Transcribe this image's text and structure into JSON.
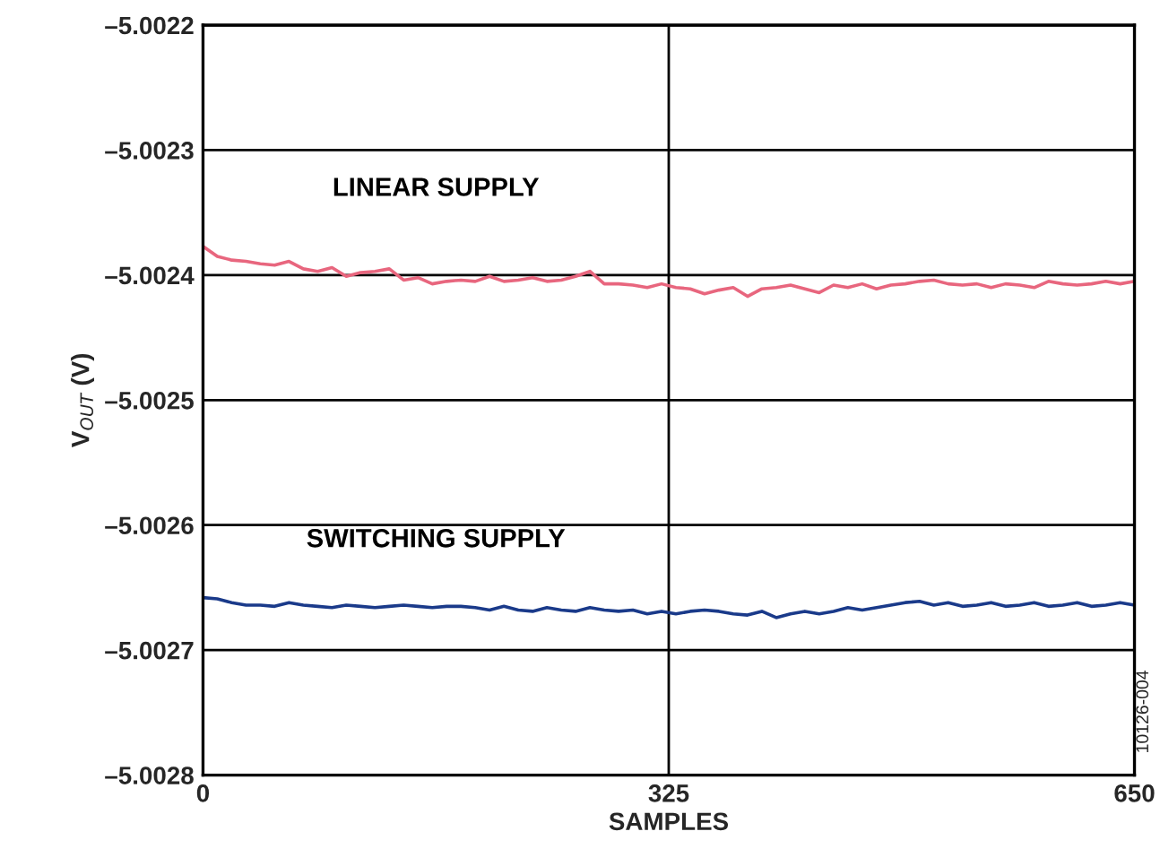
{
  "chart_data": {
    "type": "line",
    "xlabel": "SAMPLES",
    "ylabel": "V$_{OUT}$ (V)",
    "xlim": [
      0,
      650
    ],
    "xticks": [
      0,
      325,
      650
    ],
    "ylim": [
      -5.0028,
      -5.0022
    ],
    "yticks": [
      {
        "value": -5.0028,
        "label": "–5.0028"
      },
      {
        "value": -5.0027,
        "label": "–5.0027"
      },
      {
        "value": -5.0026,
        "label": "–5.0026"
      },
      {
        "value": -5.0025,
        "label": "–5.0025"
      },
      {
        "value": -5.0024,
        "label": "–5.0024"
      },
      {
        "value": -5.0023,
        "label": "–5.0023"
      },
      {
        "value": -5.0022,
        "label": "–5.0022"
      }
    ],
    "grid": true,
    "legend": false,
    "marker": "none",
    "line_style": "solid",
    "x": [
      0,
      10,
      20,
      30,
      40,
      50,
      60,
      70,
      80,
      90,
      100,
      110,
      120,
      130,
      140,
      150,
      160,
      170,
      180,
      190,
      200,
      210,
      220,
      230,
      240,
      250,
      260,
      270,
      280,
      290,
      300,
      310,
      320,
      330,
      340,
      350,
      360,
      370,
      380,
      390,
      400,
      410,
      420,
      430,
      440,
      450,
      460,
      470,
      480,
      490,
      500,
      510,
      520,
      530,
      540,
      550,
      560,
      570,
      580,
      590,
      600,
      610,
      620,
      630,
      640,
      650
    ],
    "series": [
      {
        "name": "LINEAR SUPPLY",
        "color": "#e8667e",
        "values": [
          -5.002377,
          -5.002385,
          -5.002388,
          -5.002389,
          -5.002391,
          -5.002392,
          -5.002389,
          -5.002395,
          -5.002397,
          -5.002394,
          -5.002401,
          -5.002398,
          -5.002397,
          -5.002395,
          -5.002404,
          -5.002402,
          -5.002407,
          -5.002405,
          -5.002404,
          -5.002405,
          -5.002401,
          -5.002405,
          -5.002404,
          -5.002402,
          -5.002405,
          -5.002404,
          -5.002401,
          -5.002397,
          -5.002407,
          -5.002407,
          -5.002408,
          -5.00241,
          -5.002407,
          -5.00241,
          -5.002411,
          -5.002415,
          -5.002412,
          -5.00241,
          -5.002417,
          -5.002411,
          -5.00241,
          -5.002408,
          -5.002411,
          -5.002414,
          -5.002408,
          -5.00241,
          -5.002407,
          -5.002411,
          -5.002408,
          -5.002407,
          -5.002405,
          -5.002404,
          -5.002407,
          -5.002408,
          -5.002407,
          -5.00241,
          -5.002407,
          -5.002408,
          -5.00241,
          -5.002405,
          -5.002407,
          -5.002408,
          -5.002407,
          -5.002405,
          -5.002407,
          -5.002405
        ]
      },
      {
        "name": "SWITCHING SUPPLY",
        "color": "#1a3a8a",
        "values": [
          -5.002658,
          -5.002659,
          -5.002662,
          -5.002664,
          -5.002664,
          -5.002665,
          -5.002662,
          -5.002664,
          -5.002665,
          -5.002666,
          -5.002664,
          -5.002665,
          -5.002666,
          -5.002665,
          -5.002664,
          -5.002665,
          -5.002666,
          -5.002665,
          -5.002665,
          -5.002666,
          -5.002668,
          -5.002665,
          -5.002668,
          -5.002669,
          -5.002666,
          -5.002668,
          -5.002669,
          -5.002666,
          -5.002668,
          -5.002669,
          -5.002668,
          -5.002671,
          -5.002669,
          -5.002671,
          -5.002669,
          -5.002668,
          -5.002669,
          -5.002671,
          -5.002672,
          -5.002669,
          -5.002674,
          -5.002671,
          -5.002669,
          -5.002671,
          -5.002669,
          -5.002666,
          -5.002668,
          -5.002666,
          -5.002664,
          -5.002662,
          -5.002661,
          -5.002664,
          -5.002662,
          -5.002665,
          -5.002664,
          -5.002662,
          -5.002665,
          -5.002664,
          -5.002662,
          -5.002665,
          -5.002664,
          -5.002662,
          -5.002665,
          -5.002664,
          -5.002662,
          -5.002664
        ]
      }
    ],
    "annotations": [
      "10126-004"
    ]
  }
}
